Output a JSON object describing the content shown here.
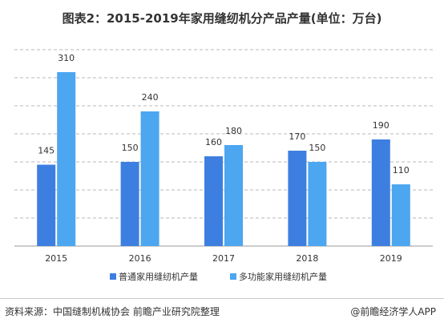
{
  "title": "图表2：2015-2019年家用缝纫机分产品产量(单位：万台)",
  "source": "资料来源：中国缝制机械协会  前瞻产业研究院整理",
  "credit": "@前瞻经济学人APP",
  "chart_data": {
    "type": "bar",
    "categories": [
      "2015",
      "2016",
      "2017",
      "2018",
      "2019"
    ],
    "series": [
      {
        "name": "普通家用缝纫机产量",
        "values": [
          145,
          150,
          160,
          170,
          190
        ],
        "color": "#3d7fe0"
      },
      {
        "name": "多功能家用缝纫机产量",
        "values": [
          310,
          240,
          180,
          150,
          110
        ],
        "color": "#4ca6f0"
      }
    ],
    "ylim": [
      0,
      350
    ],
    "grid": true,
    "gridline_style": "dashed",
    "legend_placement": "bottom"
  }
}
